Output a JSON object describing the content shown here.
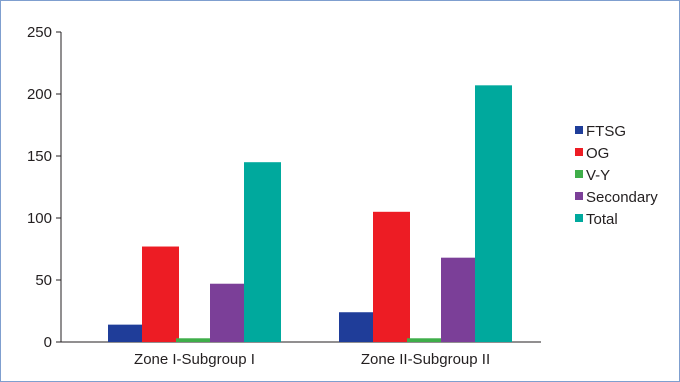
{
  "chart_data": {
    "type": "bar",
    "categories": [
      "Zone I-Subgroup I",
      "Zone II-Subgroup II"
    ],
    "series": [
      {
        "name": "FTSG",
        "values": [
          14,
          24
        ],
        "color": "#1f3d99"
      },
      {
        "name": "OG",
        "values": [
          77,
          105
        ],
        "color": "#ed1c24"
      },
      {
        "name": "V-Y",
        "values": [
          3,
          3
        ],
        "color": "#3fae49"
      },
      {
        "name": "Secondary",
        "values": [
          47,
          68
        ],
        "color": "#7b3f98"
      },
      {
        "name": "Total",
        "values": [
          145,
          207
        ],
        "color": "#00a99d"
      }
    ],
    "ylim": [
      0,
      250
    ],
    "yticks": [
      "0",
      "50",
      "100",
      "150",
      "200",
      "250"
    ],
    "grid": false,
    "legend_position": "right"
  }
}
